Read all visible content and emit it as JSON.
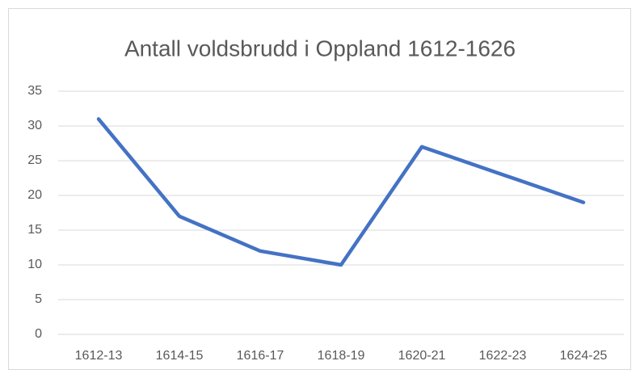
{
  "chart_data": {
    "type": "line",
    "title": "Antall voldsbrudd i Oppland 1612-1626",
    "categories": [
      "1612-13",
      "1614-15",
      "1616-17",
      "1618-19",
      "1620-21",
      "1622-23",
      "1624-25"
    ],
    "values": [
      31,
      17,
      12,
      10,
      27,
      23,
      19
    ],
    "color": "#4472c4",
    "ylim": [
      0,
      35
    ],
    "yticks": [
      0,
      5,
      10,
      15,
      20,
      25,
      30,
      35
    ],
    "grid": true
  }
}
